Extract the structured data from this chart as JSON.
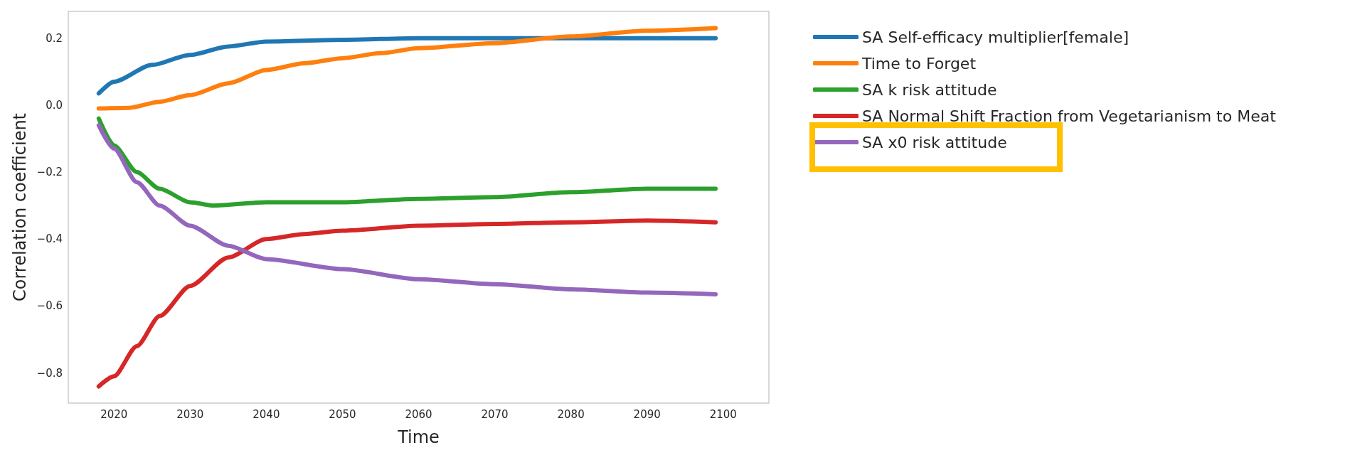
{
  "chart_data": {
    "type": "line",
    "xlabel": "Time",
    "ylabel": "Correlation coefficient",
    "xlim": [
      2014,
      2106
    ],
    "xticks": [
      2020,
      2030,
      2040,
      2050,
      2060,
      2070,
      2080,
      2090,
      2100
    ],
    "ylim": [
      -0.89,
      0.28
    ],
    "yticks": [
      -0.8,
      -0.6,
      -0.4,
      -0.2,
      {
        "value": 0,
        "label": "0.0"
      },
      0.2
    ],
    "grid": false,
    "legend": "right",
    "marker": "none",
    "line_style": "solid",
    "series": [
      {
        "name": "SA Self-efficacy multiplier[female]",
        "color": "#1f77b4",
        "x": [
          2018,
          2020,
          2025,
          2030,
          2035,
          2040,
          2050,
          2060,
          2070,
          2080,
          2090,
          2099
        ],
        "values": [
          0.035,
          0.07,
          0.12,
          0.15,
          0.175,
          0.19,
          0.195,
          0.2,
          0.2,
          0.2,
          0.2,
          0.2
        ]
      },
      {
        "name": "Time to Forget",
        "color": "#ff7f0e",
        "x": [
          2018,
          2022,
          2026,
          2030,
          2035,
          2040,
          2045,
          2050,
          2055,
          2060,
          2070,
          2080,
          2090,
          2099
        ],
        "values": [
          -0.01,
          -0.008,
          0.01,
          0.03,
          0.065,
          0.105,
          0.125,
          0.14,
          0.155,
          0.17,
          0.185,
          0.205,
          0.222,
          0.23
        ]
      },
      {
        "name": "SA k risk attitude",
        "color": "#2ca02c",
        "x": [
          2018,
          2020,
          2023,
          2026,
          2030,
          2033,
          2040,
          2050,
          2060,
          2070,
          2080,
          2090,
          2099
        ],
        "values": [
          -0.04,
          -0.12,
          -0.2,
          -0.25,
          -0.29,
          -0.3,
          -0.29,
          -0.29,
          -0.28,
          -0.275,
          -0.26,
          -0.25,
          -0.25
        ]
      },
      {
        "name": "SA Normal Shift Fraction from Vegetarianism to Meat",
        "color": "#d62728",
        "x": [
          2018,
          2020,
          2023,
          2026,
          2030,
          2035,
          2040,
          2045,
          2050,
          2060,
          2070,
          2080,
          2090,
          2099
        ],
        "values": [
          -0.84,
          -0.81,
          -0.72,
          -0.63,
          -0.54,
          -0.455,
          -0.4,
          -0.385,
          -0.375,
          -0.36,
          -0.355,
          -0.35,
          -0.345,
          -0.35
        ]
      },
      {
        "name": "SA x0 risk attitude",
        "color": "#9467bd",
        "x": [
          2018,
          2020,
          2023,
          2026,
          2030,
          2035,
          2040,
          2050,
          2060,
          2070,
          2080,
          2090,
          2099
        ],
        "values": [
          -0.06,
          -0.13,
          -0.23,
          -0.3,
          -0.36,
          -0.42,
          -0.46,
          -0.49,
          -0.52,
          -0.535,
          -0.55,
          -0.56,
          -0.565
        ]
      }
    ]
  }
}
